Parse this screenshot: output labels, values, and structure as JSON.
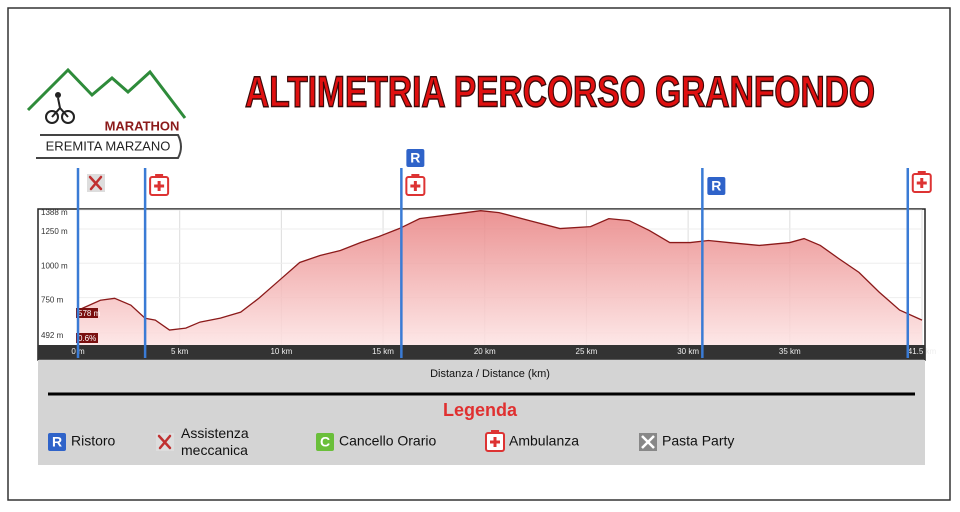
{
  "chart_data": {
    "type": "area",
    "title": "ALTIMETRIA PERCORSO GRANFONDO",
    "logo": {
      "top": "MARATHON",
      "bottom": "EREMITA MARZANO"
    },
    "x_label": "Distanza / Distance (km)",
    "x": [
      0,
      1.1,
      1.8,
      2.6,
      3.3,
      3.8,
      4.5,
      5.3,
      6.0,
      7.0,
      8.0,
      8.9,
      9.9,
      10.9,
      11.9,
      12.9,
      13.9,
      14.8,
      15.8,
      16.8,
      18.3,
      19.8,
      20.7,
      22.2,
      23.7,
      25.2,
      26.1,
      27.1,
      28.1,
      29.1,
      30.1,
      31.0,
      32.0,
      33.5,
      35.0,
      35.7,
      36.5,
      37.4,
      38.4,
      39.4,
      40.4,
      41.5
    ],
    "values": [
      658,
      731,
      745,
      695,
      600,
      586,
      514,
      528,
      572,
      601,
      644,
      746,
      876,
      1006,
      1057,
      1093,
      1151,
      1195,
      1253,
      1325,
      1354,
      1383,
      1369,
      1311,
      1253,
      1267,
      1325,
      1311,
      1238,
      1151,
      1151,
      1166,
      1151,
      1130,
      1151,
      1180,
      1130,
      1035,
      934,
      789,
      659,
      586
    ],
    "color": "#8b1a1a",
    "fill": "#f5a9a9",
    "xlim": [
      0,
      41.5
    ],
    "ylim": [
      405,
      1388
    ],
    "xticks": [
      {
        "value": 0,
        "label": "0 m"
      },
      {
        "value": 5,
        "label": "5 km"
      },
      {
        "value": 10,
        "label": "10 km"
      },
      {
        "value": 15,
        "label": "15 km"
      },
      {
        "value": 20,
        "label": "20 km"
      },
      {
        "value": 25,
        "label": "25 km"
      },
      {
        "value": 30,
        "label": "30 km"
      },
      {
        "value": 35,
        "label": "35 km"
      },
      {
        "value": 41.5,
        "label": "41.5 km"
      }
    ],
    "yticks": [
      {
        "value": 492,
        "label": "492 m"
      },
      {
        "value": 750,
        "label": "750 m"
      },
      {
        "value": 1000,
        "label": "1000 m"
      },
      {
        "value": 1250,
        "label": "1250 m"
      },
      {
        "value": 1388,
        "label": "1388 m"
      }
    ],
    "grid": true,
    "annotations": [
      "578 m",
      "0.6%"
    ],
    "stations": [
      {
        "km": 0,
        "icons": [
          "Assistenza meccanica"
        ]
      },
      {
        "km": 3.3,
        "icons": [
          "Ambulanza"
        ]
      },
      {
        "km": 15.9,
        "icons": [
          "Ristoro",
          "Ambulanza"
        ]
      },
      {
        "km": 30.7,
        "icons": [
          "Ristoro"
        ]
      },
      {
        "km": 40.8,
        "icons": [
          "Ambulanza"
        ]
      }
    ],
    "legend_title": "Legenda",
    "legend": [
      {
        "label": "Ristoro",
        "icon": "R"
      },
      {
        "label": "Assistenza meccanica"
      },
      {
        "label": "Cancello Orario",
        "icon": "C"
      },
      {
        "label": "Ambulanza"
      },
      {
        "label": "Pasta Party"
      }
    ]
  }
}
